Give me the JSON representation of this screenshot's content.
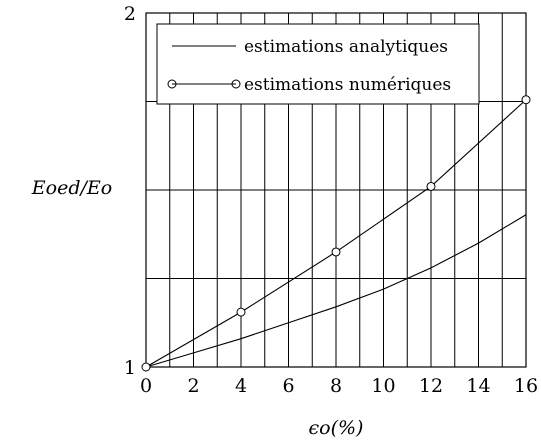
{
  "chart_data": {
    "type": "line",
    "xlabel": "ϵo(%)",
    "ylabel": "Eoed/Eo",
    "xlim": [
      0,
      16
    ],
    "ylim": [
      1,
      2
    ],
    "x_ticks": [
      "0",
      "2",
      "4",
      "6",
      "8",
      "10",
      "12",
      "14",
      "16"
    ],
    "y_ticks": [
      "1",
      "2"
    ],
    "vertical_grid_step": 1,
    "horizontal_grid": [
      1.25,
      1.5,
      1.75
    ],
    "grid": true,
    "legend_position": "top-right",
    "series": [
      {
        "name": "estimations analytiques",
        "marker": "none",
        "x": [
          0,
          2,
          4,
          6,
          8,
          10,
          12,
          14,
          16
        ],
        "y": [
          1,
          1.04,
          1.08,
          1.125,
          1.17,
          1.22,
          1.28,
          1.35,
          1.43
        ]
      },
      {
        "name": "estimations numériques",
        "marker": "circle",
        "x": [
          0,
          4,
          8,
          12,
          16
        ],
        "y": [
          1,
          1.155,
          1.325,
          1.51,
          1.755
        ]
      }
    ]
  }
}
